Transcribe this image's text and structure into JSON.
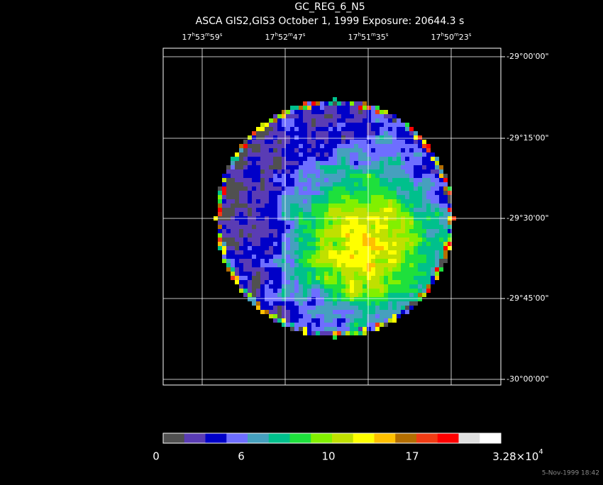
{
  "title": "GC_REG_6_N5",
  "subtitle": "ASCA GIS2,GIS3 October 1, 1999 Exposure: 20644.3 s",
  "ra_labels": [
    "17h53m59s",
    "17h52m47s",
    "17h51m35s",
    "17h50m23s"
  ],
  "dec_labels": [
    "-29°00'00\"",
    "-29°15'00\"",
    "-29°30'00\"",
    "-29°45'00\"",
    "-30°00'00\""
  ],
  "colorbar": {
    "colors": [
      "#505050",
      "#5a3cb4",
      "#0000c8",
      "#6e6eff",
      "#46a0be",
      "#00c08c",
      "#1ee03c",
      "#82f000",
      "#c0e000",
      "#ffff00",
      "#ffc000",
      "#b46e00",
      "#f03c14",
      "#ff0000",
      "#e0e0e0",
      "#ffffff"
    ],
    "labels": [
      "0",
      "6",
      "10",
      "17",
      {
        "mantissa": "3.28×10",
        "exponent": "4"
      }
    ]
  },
  "timestamp": "5-Nov-1999 18:42"
}
